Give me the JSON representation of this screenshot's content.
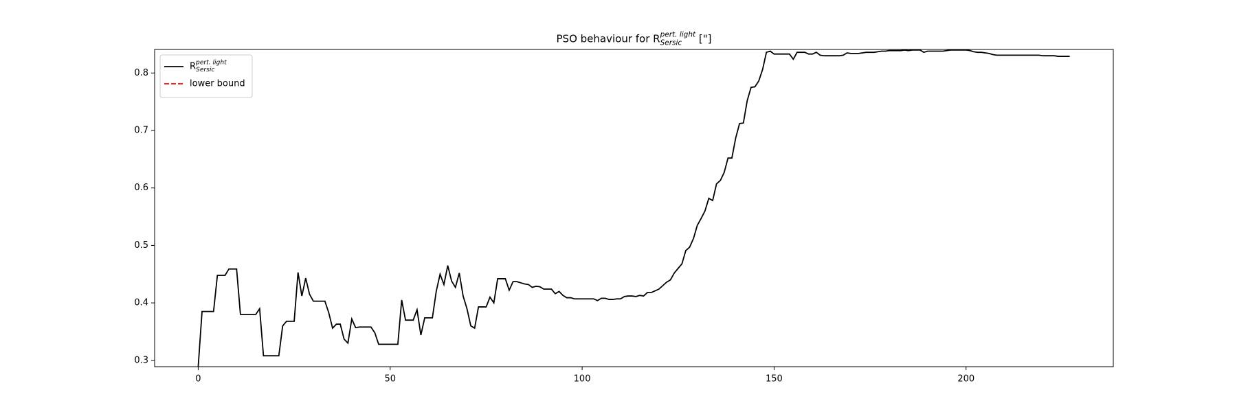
{
  "chart_data": {
    "type": "line",
    "title": {
      "text": "PSO behaviour for R",
      "subscript": "Sersic",
      "superscript": "pert. light",
      "suffix": " [\"]"
    },
    "x": [
      0,
      1,
      2,
      3,
      4,
      5,
      6,
      7,
      8,
      9,
      10,
      11,
      12,
      13,
      14,
      15,
      16,
      17,
      18,
      19,
      20,
      21,
      22,
      23,
      24,
      25,
      26,
      27,
      28,
      29,
      30,
      31,
      32,
      33,
      34,
      35,
      36,
      37,
      38,
      39,
      40,
      41,
      42,
      43,
      44,
      45,
      46,
      47,
      48,
      49,
      50,
      51,
      52,
      53,
      54,
      55,
      56,
      57,
      58,
      59,
      60,
      61,
      62,
      63,
      64,
      65,
      66,
      67,
      68,
      69,
      70,
      71,
      72,
      73,
      74,
      75,
      76,
      77,
      78,
      79,
      80,
      81,
      82,
      83,
      84,
      85,
      86,
      87,
      88,
      89,
      90,
      91,
      92,
      93,
      94,
      95,
      96,
      97,
      98,
      99,
      100,
      101,
      102,
      103,
      104,
      105,
      106,
      107,
      108,
      109,
      110,
      111,
      112,
      113,
      114,
      115,
      116,
      117,
      118,
      119,
      120,
      121,
      122,
      123,
      124,
      125,
      126,
      127,
      128,
      129,
      130,
      131,
      132,
      133,
      134,
      135,
      136,
      137,
      138,
      139,
      140,
      141,
      142,
      143,
      144,
      145,
      146,
      147,
      148,
      149,
      150,
      151,
      152,
      153,
      154,
      155,
      156,
      157,
      158,
      159,
      160,
      161,
      162,
      163,
      164,
      165,
      166,
      167,
      168,
      169,
      170,
      171,
      172,
      173,
      174,
      175,
      176,
      177,
      178,
      179,
      180,
      181,
      182,
      183,
      184,
      185,
      186,
      187,
      188,
      189,
      190,
      191,
      192,
      193,
      194,
      195,
      196,
      197,
      198,
      199,
      200,
      201,
      202,
      203,
      204,
      205,
      206,
      207,
      208,
      209,
      210,
      211,
      212,
      213,
      214,
      215,
      216,
      217,
      218,
      219,
      220,
      221,
      222,
      223,
      224,
      225,
      226,
      227
    ],
    "series": [
      {
        "name": "R",
        "name_subscript": "Sersic",
        "name_superscript": "pert. light",
        "color": "#000000",
        "linestyle": "solid",
        "values": [
          0.289,
          0.385,
          0.385,
          0.385,
          0.385,
          0.448,
          0.448,
          0.448,
          0.459,
          0.459,
          0.459,
          0.38,
          0.38,
          0.38,
          0.38,
          0.38,
          0.39,
          0.308,
          0.308,
          0.308,
          0.308,
          0.308,
          0.36,
          0.368,
          0.368,
          0.368,
          0.453,
          0.412,
          0.443,
          0.415,
          0.403,
          0.403,
          0.403,
          0.403,
          0.383,
          0.356,
          0.363,
          0.363,
          0.337,
          0.33,
          0.372,
          0.357,
          0.358,
          0.358,
          0.358,
          0.358,
          0.348,
          0.328,
          0.328,
          0.328,
          0.328,
          0.328,
          0.328,
          0.405,
          0.37,
          0.37,
          0.37,
          0.388,
          0.344,
          0.374,
          0.374,
          0.374,
          0.42,
          0.45,
          0.432,
          0.465,
          0.438,
          0.427,
          0.452,
          0.412,
          0.39,
          0.36,
          0.356,
          0.393,
          0.393,
          0.393,
          0.41,
          0.4,
          0.442,
          0.442,
          0.442,
          0.422,
          0.437,
          0.437,
          0.435,
          0.433,
          0.432,
          0.427,
          0.429,
          0.428,
          0.424,
          0.424,
          0.424,
          0.416,
          0.42,
          0.413,
          0.409,
          0.409,
          0.407,
          0.407,
          0.407,
          0.407,
          0.407,
          0.407,
          0.404,
          0.408,
          0.408,
          0.406,
          0.406,
          0.407,
          0.407,
          0.411,
          0.412,
          0.412,
          0.411,
          0.413,
          0.412,
          0.418,
          0.418,
          0.421,
          0.424,
          0.43,
          0.436,
          0.44,
          0.452,
          0.46,
          0.468,
          0.491,
          0.497,
          0.512,
          0.535,
          0.547,
          0.56,
          0.582,
          0.578,
          0.607,
          0.613,
          0.627,
          0.652,
          0.652,
          0.687,
          0.712,
          0.713,
          0.752,
          0.775,
          0.776,
          0.786,
          0.806,
          0.836,
          0.838,
          0.833,
          0.833,
          0.833,
          0.833,
          0.833,
          0.824,
          0.836,
          0.836,
          0.836,
          0.833,
          0.833,
          0.836,
          0.831,
          0.83,
          0.83,
          0.83,
          0.83,
          0.83,
          0.831,
          0.835,
          0.834,
          0.834,
          0.834,
          0.835,
          0.836,
          0.836,
          0.836,
          0.837,
          0.838,
          0.838,
          0.839,
          0.839,
          0.839,
          0.839,
          0.84,
          0.839,
          0.84,
          0.84,
          0.84,
          0.836,
          0.838,
          0.838,
          0.838,
          0.838,
          0.838,
          0.839,
          0.84,
          0.84,
          0.84,
          0.84,
          0.84,
          0.839,
          0.837,
          0.836,
          0.836,
          0.835,
          0.834,
          0.832,
          0.831,
          0.831,
          0.831,
          0.831,
          0.831,
          0.831,
          0.831,
          0.831,
          0.831,
          0.831,
          0.831,
          0.831,
          0.83,
          0.83,
          0.83,
          0.83,
          0.829,
          0.829,
          0.829,
          0.829
        ]
      },
      {
        "name": "lower bound",
        "color": "#ff0000",
        "linestyle": "dashed"
      }
    ],
    "xlim": [
      -11.35,
      238.35
    ],
    "xticks": [
      0,
      50,
      100,
      150,
      200
    ],
    "ylim": [
      0.289,
      0.841
    ],
    "yticks": [
      0.3,
      0.4,
      0.5,
      0.6,
      0.7,
      0.8
    ],
    "grid": false,
    "legend": "upper left"
  }
}
